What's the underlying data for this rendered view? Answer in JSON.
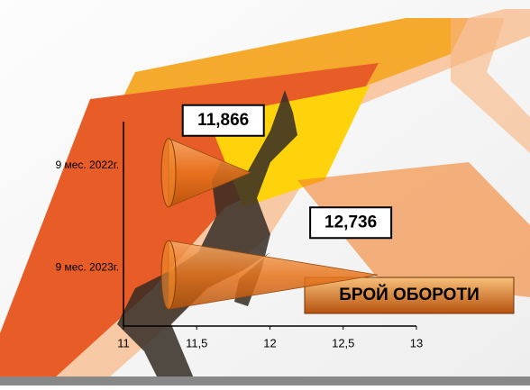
{
  "chart_data": {
    "type": "cone-bar",
    "title": "БРОЙ ОБОРОТИ",
    "categories": [
      "9 мес. 2022г.",
      "9 мес. 2023г."
    ],
    "values": [
      11.866,
      12.736
    ],
    "value_labels": [
      "11,866",
      "12,736"
    ],
    "color": "#f08a2a",
    "xlim": [
      11,
      13
    ],
    "xticks": [
      11,
      {
        "value": 11.5,
        "label": "11,5"
      },
      12,
      {
        "value": 12.5,
        "label": "12,5"
      },
      13
    ]
  }
}
